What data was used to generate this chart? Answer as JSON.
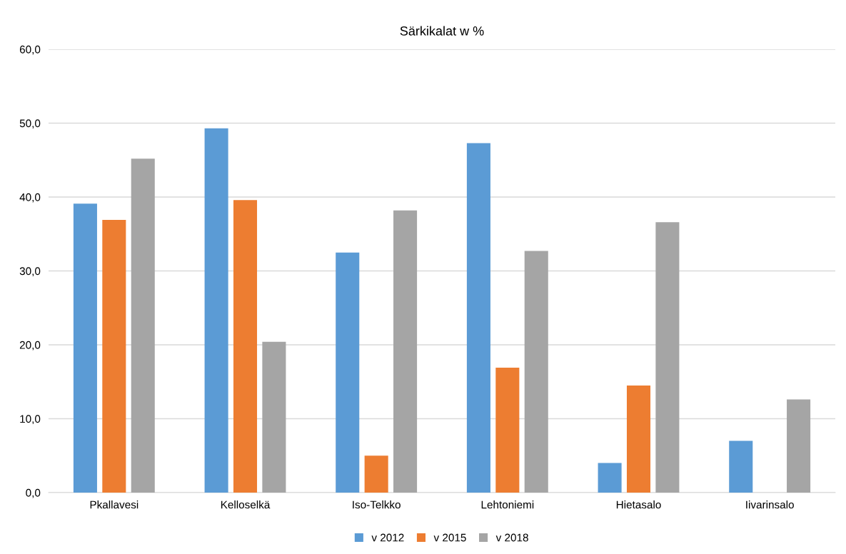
{
  "chart_data": {
    "type": "bar",
    "title": "Särkikalat w %",
    "categories": [
      "Pkallavesi",
      "Kelloselkä",
      "Iso-Telkko",
      "Lehtoniemi",
      "Hietasalo",
      "Iivarinsalo"
    ],
    "series": [
      {
        "name": "v 2012",
        "color": "#5b9bd5",
        "values": [
          39.1,
          49.3,
          32.5,
          47.3,
          4.0,
          7.0
        ]
      },
      {
        "name": "v 2015",
        "color": "#ed7d31",
        "values": [
          36.9,
          39.6,
          5.0,
          16.9,
          14.5,
          null
        ]
      },
      {
        "name": "v 2018",
        "color": "#a5a5a5",
        "values": [
          45.2,
          20.4,
          38.2,
          32.7,
          36.6,
          12.6
        ]
      }
    ],
    "ylim": [
      0,
      60
    ],
    "yticks": [
      {
        "value": 0,
        "label": "0,0"
      },
      {
        "value": 10,
        "label": "10,0"
      },
      {
        "value": 20,
        "label": "20,0"
      },
      {
        "value": 30,
        "label": "30,0"
      },
      {
        "value": 40,
        "label": "40,0"
      },
      {
        "value": 50,
        "label": "50,0"
      },
      {
        "value": 60,
        "label": "60,0"
      }
    ],
    "grid": "y",
    "legend": "bottom"
  }
}
